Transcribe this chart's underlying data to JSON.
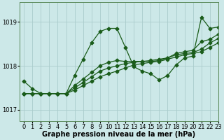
{
  "title": "Graphe pression niveau de la mer (hPa)",
  "background_color": "#cce8e8",
  "grid_color": "#aacccc",
  "line_color": "#1a5c1a",
  "xlim": [
    -0.5,
    23
  ],
  "ylim": [
    1016.75,
    1019.45
  ],
  "yticks": [
    1017,
    1018,
    1019
  ],
  "xticks": [
    0,
    1,
    2,
    3,
    4,
    5,
    6,
    7,
    8,
    9,
    10,
    11,
    12,
    13,
    14,
    15,
    16,
    17,
    18,
    19,
    20,
    21,
    22,
    23
  ],
  "series": [
    {
      "x": [
        0,
        1,
        2,
        3,
        4,
        5,
        6,
        7,
        8,
        9,
        10,
        11,
        12,
        13,
        14,
        15,
        16,
        17,
        18,
        19,
        20,
        21,
        22,
        23
      ],
      "y": [
        1017.65,
        1017.48,
        1017.37,
        1017.37,
        1017.37,
        1017.37,
        1017.78,
        1018.15,
        1018.52,
        1018.78,
        1018.85,
        1018.85,
        1018.42,
        1017.98,
        1017.88,
        1017.82,
        1017.68,
        1017.78,
        1018.02,
        1018.18,
        1018.22,
        1019.1,
        1018.85,
        1018.88
      ]
    },
    {
      "x": [
        0,
        1,
        2,
        3,
        4,
        5,
        6,
        7,
        8,
        9,
        10,
        11,
        12,
        13,
        14,
        15,
        16,
        17,
        18,
        19,
        20,
        21,
        22,
        23
      ],
      "y": [
        1017.37,
        1017.37,
        1017.37,
        1017.37,
        1017.37,
        1017.37,
        1017.45,
        1017.55,
        1017.65,
        1017.75,
        1017.82,
        1017.88,
        1017.95,
        1018.02,
        1018.05,
        1018.08,
        1018.1,
        1018.15,
        1018.2,
        1018.25,
        1018.28,
        1018.32,
        1018.42,
        1018.52
      ]
    },
    {
      "x": [
        0,
        1,
        2,
        3,
        4,
        5,
        6,
        7,
        8,
        9,
        10,
        11,
        12,
        13,
        14,
        15,
        16,
        17,
        18,
        19,
        20,
        21,
        22,
        23
      ],
      "y": [
        1017.37,
        1017.37,
        1017.37,
        1017.37,
        1017.37,
        1017.37,
        1017.5,
        1017.62,
        1017.75,
        1017.88,
        1017.95,
        1018.0,
        1018.05,
        1018.08,
        1018.1,
        1018.12,
        1018.15,
        1018.18,
        1018.25,
        1018.28,
        1018.3,
        1018.38,
        1018.52,
        1018.62
      ]
    },
    {
      "x": [
        0,
        1,
        2,
        3,
        4,
        5,
        6,
        7,
        8,
        9,
        10,
        11,
        12,
        13,
        14,
        15,
        16,
        17,
        18,
        19,
        20,
        21,
        22,
        23
      ],
      "y": [
        1017.37,
        1017.37,
        1017.37,
        1017.37,
        1017.37,
        1017.37,
        1017.55,
        1017.7,
        1017.85,
        1018.0,
        1018.08,
        1018.12,
        1018.1,
        1018.1,
        1018.1,
        1018.1,
        1018.12,
        1018.18,
        1018.28,
        1018.32,
        1018.35,
        1018.55,
        1018.6,
        1018.72
      ]
    }
  ],
  "marker": "D",
  "markersize": 2.5,
  "linewidth": 0.9,
  "label_fontsize": 7,
  "tick_fontsize": 6
}
